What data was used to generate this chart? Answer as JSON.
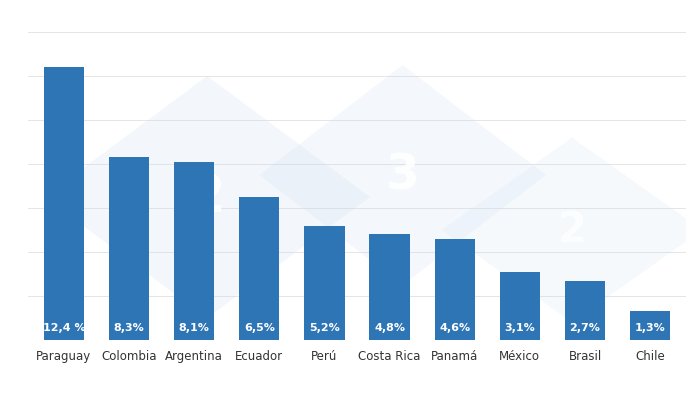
{
  "categories": [
    "Paraguay",
    "Colombia",
    "Argentina",
    "Ecuador",
    "Perú",
    "Costa Rica",
    "Panamá",
    "México",
    "Brasil",
    "Chile"
  ],
  "values": [
    12.4,
    8.3,
    8.1,
    6.5,
    5.2,
    4.8,
    4.6,
    3.1,
    2.7,
    1.3
  ],
  "labels": [
    "12,4 %",
    "8,3%",
    "8,1%",
    "6,5%",
    "5,2%",
    "4,8%",
    "4,6%",
    "3,1%",
    "2,7%",
    "1,3%"
  ],
  "bar_color": "#2E75B6",
  "background_color": "#ffffff",
  "label_color": "#ffffff",
  "label_fontsize": 8.0,
  "tick_fontsize": 8.5,
  "ylim": [
    0,
    14
  ],
  "bar_width": 0.62,
  "figsize": [
    7.0,
    4.0
  ],
  "dpi": 100,
  "grid_color": "#e0e0e0",
  "watermark_color": "#C9DDF0",
  "watermark_text_color": "#ffffff"
}
